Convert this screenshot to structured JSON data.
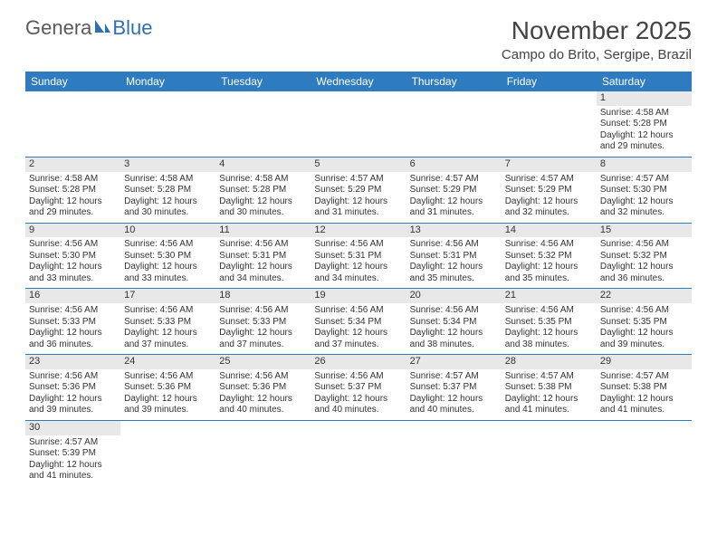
{
  "colors": {
    "header_bg": "#2f7bbf",
    "header_text": "#ffffff",
    "daynum_bg": "#e8e8e8",
    "cell_border": "#2f7bbf",
    "body_text": "#333333",
    "logo_gray": "#5a5a5a",
    "logo_blue": "#2f6fb0",
    "page_bg": "#ffffff"
  },
  "logo": {
    "part1": "Genera",
    "part2": "Blue"
  },
  "title": "November 2025",
  "location": "Campo do Brito, Sergipe, Brazil",
  "weekday_headers": [
    "Sunday",
    "Monday",
    "Tuesday",
    "Wednesday",
    "Thursday",
    "Friday",
    "Saturday"
  ],
  "calendar": {
    "first_weekday_index": 6,
    "days": [
      {
        "n": "1",
        "sunrise": "Sunrise: 4:58 AM",
        "sunset": "Sunset: 5:28 PM",
        "day1": "Daylight: 12 hours",
        "day2": "and 29 minutes."
      },
      {
        "n": "2",
        "sunrise": "Sunrise: 4:58 AM",
        "sunset": "Sunset: 5:28 PM",
        "day1": "Daylight: 12 hours",
        "day2": "and 29 minutes."
      },
      {
        "n": "3",
        "sunrise": "Sunrise: 4:58 AM",
        "sunset": "Sunset: 5:28 PM",
        "day1": "Daylight: 12 hours",
        "day2": "and 30 minutes."
      },
      {
        "n": "4",
        "sunrise": "Sunrise: 4:58 AM",
        "sunset": "Sunset: 5:28 PM",
        "day1": "Daylight: 12 hours",
        "day2": "and 30 minutes."
      },
      {
        "n": "5",
        "sunrise": "Sunrise: 4:57 AM",
        "sunset": "Sunset: 5:29 PM",
        "day1": "Daylight: 12 hours",
        "day2": "and 31 minutes."
      },
      {
        "n": "6",
        "sunrise": "Sunrise: 4:57 AM",
        "sunset": "Sunset: 5:29 PM",
        "day1": "Daylight: 12 hours",
        "day2": "and 31 minutes."
      },
      {
        "n": "7",
        "sunrise": "Sunrise: 4:57 AM",
        "sunset": "Sunset: 5:29 PM",
        "day1": "Daylight: 12 hours",
        "day2": "and 32 minutes."
      },
      {
        "n": "8",
        "sunrise": "Sunrise: 4:57 AM",
        "sunset": "Sunset: 5:30 PM",
        "day1": "Daylight: 12 hours",
        "day2": "and 32 minutes."
      },
      {
        "n": "9",
        "sunrise": "Sunrise: 4:56 AM",
        "sunset": "Sunset: 5:30 PM",
        "day1": "Daylight: 12 hours",
        "day2": "and 33 minutes."
      },
      {
        "n": "10",
        "sunrise": "Sunrise: 4:56 AM",
        "sunset": "Sunset: 5:30 PM",
        "day1": "Daylight: 12 hours",
        "day2": "and 33 minutes."
      },
      {
        "n": "11",
        "sunrise": "Sunrise: 4:56 AM",
        "sunset": "Sunset: 5:31 PM",
        "day1": "Daylight: 12 hours",
        "day2": "and 34 minutes."
      },
      {
        "n": "12",
        "sunrise": "Sunrise: 4:56 AM",
        "sunset": "Sunset: 5:31 PM",
        "day1": "Daylight: 12 hours",
        "day2": "and 34 minutes."
      },
      {
        "n": "13",
        "sunrise": "Sunrise: 4:56 AM",
        "sunset": "Sunset: 5:31 PM",
        "day1": "Daylight: 12 hours",
        "day2": "and 35 minutes."
      },
      {
        "n": "14",
        "sunrise": "Sunrise: 4:56 AM",
        "sunset": "Sunset: 5:32 PM",
        "day1": "Daylight: 12 hours",
        "day2": "and 35 minutes."
      },
      {
        "n": "15",
        "sunrise": "Sunrise: 4:56 AM",
        "sunset": "Sunset: 5:32 PM",
        "day1": "Daylight: 12 hours",
        "day2": "and 36 minutes."
      },
      {
        "n": "16",
        "sunrise": "Sunrise: 4:56 AM",
        "sunset": "Sunset: 5:33 PM",
        "day1": "Daylight: 12 hours",
        "day2": "and 36 minutes."
      },
      {
        "n": "17",
        "sunrise": "Sunrise: 4:56 AM",
        "sunset": "Sunset: 5:33 PM",
        "day1": "Daylight: 12 hours",
        "day2": "and 37 minutes."
      },
      {
        "n": "18",
        "sunrise": "Sunrise: 4:56 AM",
        "sunset": "Sunset: 5:33 PM",
        "day1": "Daylight: 12 hours",
        "day2": "and 37 minutes."
      },
      {
        "n": "19",
        "sunrise": "Sunrise: 4:56 AM",
        "sunset": "Sunset: 5:34 PM",
        "day1": "Daylight: 12 hours",
        "day2": "and 37 minutes."
      },
      {
        "n": "20",
        "sunrise": "Sunrise: 4:56 AM",
        "sunset": "Sunset: 5:34 PM",
        "day1": "Daylight: 12 hours",
        "day2": "and 38 minutes."
      },
      {
        "n": "21",
        "sunrise": "Sunrise: 4:56 AM",
        "sunset": "Sunset: 5:35 PM",
        "day1": "Daylight: 12 hours",
        "day2": "and 38 minutes."
      },
      {
        "n": "22",
        "sunrise": "Sunrise: 4:56 AM",
        "sunset": "Sunset: 5:35 PM",
        "day1": "Daylight: 12 hours",
        "day2": "and 39 minutes."
      },
      {
        "n": "23",
        "sunrise": "Sunrise: 4:56 AM",
        "sunset": "Sunset: 5:36 PM",
        "day1": "Daylight: 12 hours",
        "day2": "and 39 minutes."
      },
      {
        "n": "24",
        "sunrise": "Sunrise: 4:56 AM",
        "sunset": "Sunset: 5:36 PM",
        "day1": "Daylight: 12 hours",
        "day2": "and 39 minutes."
      },
      {
        "n": "25",
        "sunrise": "Sunrise: 4:56 AM",
        "sunset": "Sunset: 5:36 PM",
        "day1": "Daylight: 12 hours",
        "day2": "and 40 minutes."
      },
      {
        "n": "26",
        "sunrise": "Sunrise: 4:56 AM",
        "sunset": "Sunset: 5:37 PM",
        "day1": "Daylight: 12 hours",
        "day2": "and 40 minutes."
      },
      {
        "n": "27",
        "sunrise": "Sunrise: 4:57 AM",
        "sunset": "Sunset: 5:37 PM",
        "day1": "Daylight: 12 hours",
        "day2": "and 40 minutes."
      },
      {
        "n": "28",
        "sunrise": "Sunrise: 4:57 AM",
        "sunset": "Sunset: 5:38 PM",
        "day1": "Daylight: 12 hours",
        "day2": "and 41 minutes."
      },
      {
        "n": "29",
        "sunrise": "Sunrise: 4:57 AM",
        "sunset": "Sunset: 5:38 PM",
        "day1": "Daylight: 12 hours",
        "day2": "and 41 minutes."
      },
      {
        "n": "30",
        "sunrise": "Sunrise: 4:57 AM",
        "sunset": "Sunset: 5:39 PM",
        "day1": "Daylight: 12 hours",
        "day2": "and 41 minutes."
      }
    ]
  }
}
